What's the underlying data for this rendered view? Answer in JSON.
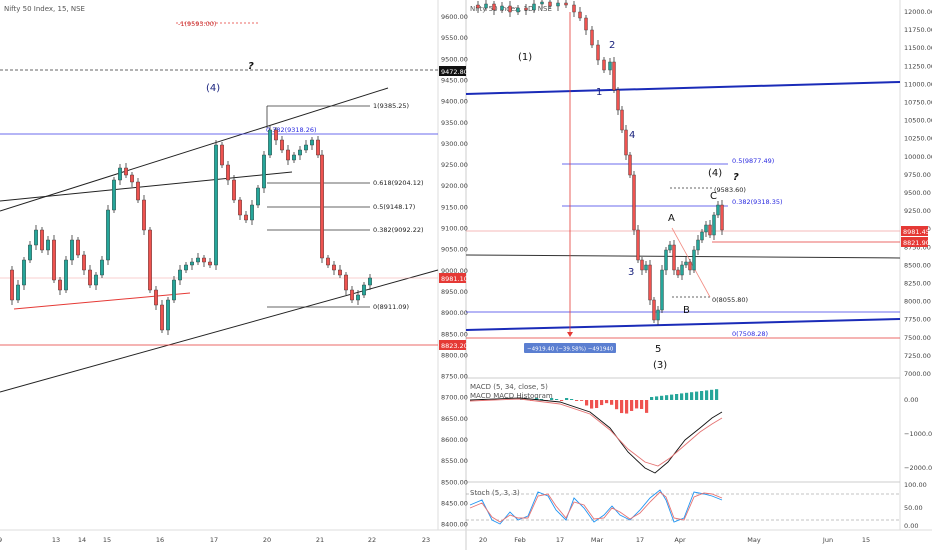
{
  "colors": {
    "up": "#26a69a",
    "down": "#ef5350",
    "candle_body": "#333333",
    "channel": "#222222",
    "blue_line": "#1a2bb8",
    "fib_blue": "#3a3ae6",
    "red_line": "#e53935",
    "price_tag_red": "#e53935",
    "price_tag_black": "#111111",
    "macd_line": "#111111",
    "signal_line": "#e57373",
    "stoch_k": "#2196f3",
    "stoch_d": "#e57373"
  },
  "left_panel": {
    "title": "Nifty 50 Index, 15, NSE",
    "y_ticks": [
      "9600.00",
      "9550.00",
      "9500.00",
      "9450.00",
      "9400.00",
      "9350.00",
      "9300.00",
      "9250.00",
      "9200.00",
      "9150.00",
      "9100.00",
      "9050.00",
      "9000.00",
      "8950.00",
      "8900.00",
      "8850.00",
      "8800.00",
      "8750.00",
      "8700.00",
      "8650.00",
      "8600.00",
      "8550.00",
      "8500.00",
      "8450.00",
      "8400.00"
    ],
    "x_ticks": [
      "9",
      "13",
      "14",
      "15",
      "16",
      "17",
      "20",
      "21",
      "22",
      "23"
    ],
    "fib_labels": [
      "-1(9593.00)",
      "1(9385.25)",
      "0.382(9318.26)",
      "0.618(9204.12)",
      "0.5(9148.17)",
      "0.382(9092.22)",
      "0(8911.09)"
    ],
    "wave_labels": [
      "(4)",
      "?"
    ],
    "price_tags": [
      "9472.80",
      "8981.10",
      "8823.20"
    ]
  },
  "right_panel": {
    "title": "Nifty 50 Index, 1D, NSE",
    "y_ticks": [
      "12000.00",
      "11750.00",
      "11500.00",
      "11250.00",
      "11000.00",
      "10750.00",
      "10500.00",
      "10250.00",
      "10000.00",
      "9750.00",
      "9500.00",
      "9250.00",
      "9000.00",
      "8750.00",
      "8500.00",
      "8250.00",
      "8000.00",
      "7750.00",
      "7500.00",
      "7250.00",
      "7000.00"
    ],
    "x_ticks": [
      "20",
      "Feb",
      "17",
      "Mar",
      "17",
      "Apr",
      "May",
      "Jun",
      "15"
    ],
    "fib_labels": [
      "0.5(9877.49)",
      "(9583.60)",
      "0.382(9318.35)",
      "0(8055.80)",
      "0(7508.28)"
    ],
    "wave_labels": [
      "(1)",
      "2",
      "1",
      "4",
      "3",
      "5",
      "(3)",
      "(4)",
      "?",
      "A",
      "B",
      "C"
    ],
    "price_tags": [
      "8981.45",
      "8821.90"
    ],
    "measure_label": "−4919.40 (−39.58%) −491940",
    "macd": {
      "title": "MACD (5, 34, close, 5)",
      "subtitle": "MACD MACD Histogram",
      "y_ticks": [
        "0.00",
        "−1000.00",
        "−2000.00"
      ]
    },
    "stoch": {
      "title": "Stoch (5, 3, 3)",
      "y_ticks": [
        "100.00",
        "50.00",
        "0.00"
      ]
    }
  }
}
